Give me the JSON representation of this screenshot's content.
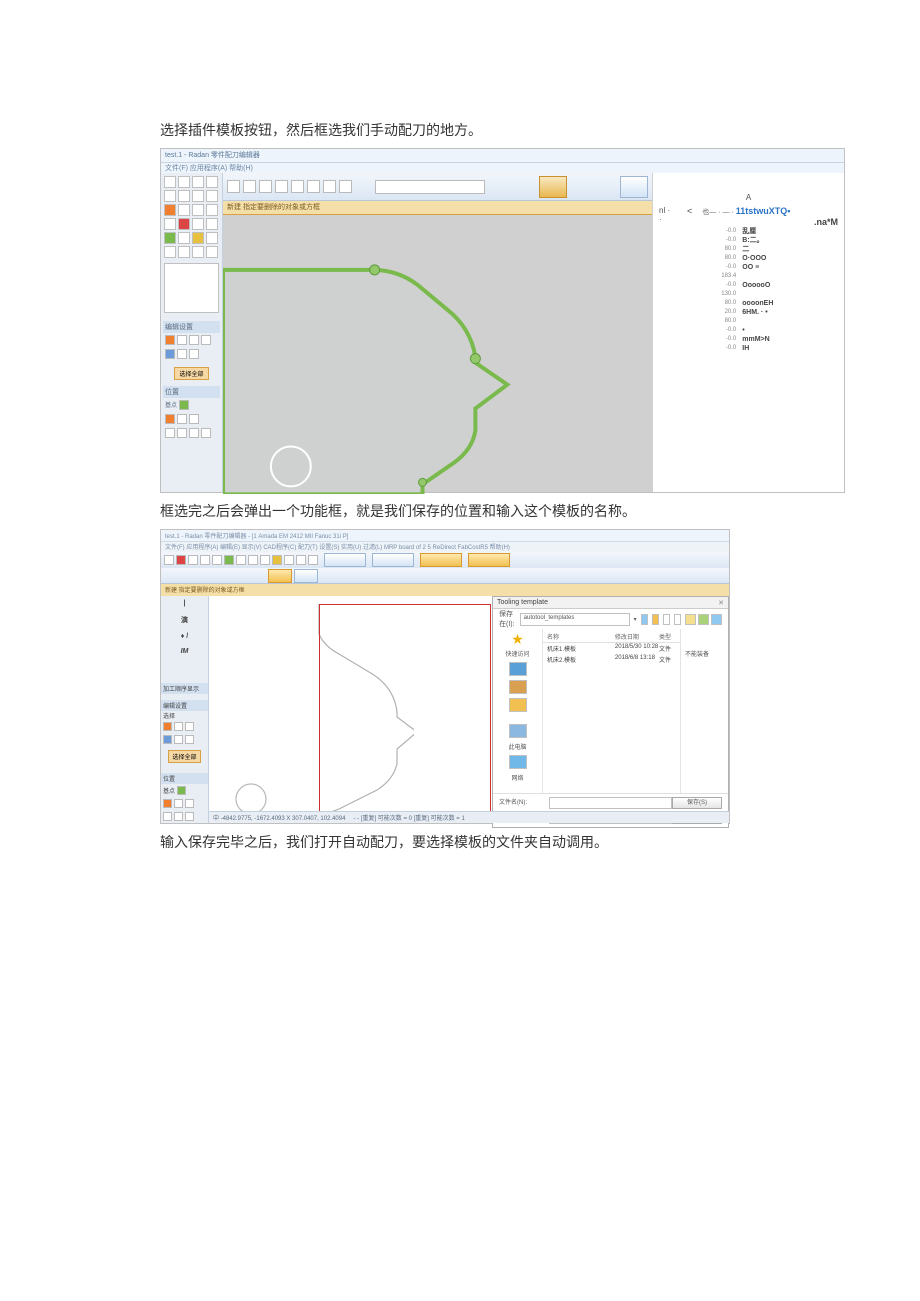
{
  "paragraphs": {
    "p1": "选择插件模板按钮，然后框选我们手动配刀的地方。",
    "p2": "框选完之后会弹出一个功能框，就是我们保存的位置和输入这个模板的名称。",
    "p3": "输入保存完毕之后，我们打开自动配刀，要选择模板的文件夹自动调用。"
  },
  "screenshot1": {
    "title": "test.1 - Radan 零件配刀编辑器",
    "menu": "文件(F)  应用程序(A)  帮助(H)",
    "subbar": "新建  指定要删除的对象或方框",
    "side": {
      "hdr1": "编辑设置",
      "btn_select_all": "选择全部",
      "hdr2": "位置",
      "lbl_origin": "基点"
    },
    "right_panel": {
      "caret": "A",
      "nl": "nl ·",
      "lt": "<",
      "mark": "也— · — ·",
      "blue": "11tstwuXTQ•",
      "bold_right": ".na*M",
      "rows": [
        {
          "l": "-0.0",
          "v": "乱厘"
        },
        {
          "l": "-0.0",
          "v": "B:二。"
        },
        {
          "l": "80.0",
          "v": "二"
        },
        {
          "l": "80.0",
          "v": "O·OOO"
        },
        {
          "l": "-0.0",
          "v": "OO ≡"
        },
        {
          "l": "183.4",
          "v": ""
        },
        {
          "l": "-0.0",
          "v": "OooooO"
        },
        {
          "l": "130.0",
          "v": ""
        },
        {
          "l": "80.0",
          "v": "oooonEH"
        },
        {
          "l": "20.0",
          "v": "6HM. · •"
        },
        {
          "l": "80.0",
          "v": ""
        },
        {
          "l": "-0.0",
          "v": "•"
        },
        {
          "l": "-0.0",
          "v": "mmM>N"
        },
        {
          "l": "-0.0",
          "v": "IH"
        }
      ]
    },
    "shape": {
      "fill": "#cfd0d0",
      "stroke": "#7aba4c",
      "stroke_width": 4,
      "marker_fill": "#93c96a",
      "marker_stroke": "#5f9a3b",
      "circle_stroke": "#ffffff",
      "circle_sw": 2
    }
  },
  "screenshot2": {
    "title": "test.1 - Radan 零件配刀编辑器 - [1 Amada EM 2412 MII Fanuc 31i P]",
    "menu": "文件(F)  应用程序(A)  编辑(E)  显示(V)  CAD程序(C)  配刀(T)  设置(S)  实用(U)  过滤(L)  MRP board of 2 5   ReDirect   FabCostR5   帮助(H)",
    "subbar": "新建  指定要删除的对象或方框",
    "left": {
      "sym1": "演",
      "sym2": "♦ /",
      "sym3": "IM",
      "hdr_proc": "加工顺序显示",
      "hdr_edit": "编辑设置",
      "lbl_sel": "选择",
      "btn_select_all": "选择全部",
      "hdr_pos": "位置",
      "lbl_origin": "基点"
    },
    "dialog": {
      "title": "Tooling template",
      "save_in_lbl": "保存在(I):",
      "folder": "autotool_templates",
      "quick_access": "快速访问",
      "this_pc": "此电脑",
      "network": "网络",
      "headers": {
        "name": "名称",
        "date": "修改日期",
        "type": "类型"
      },
      "rows": [
        {
          "name": "机床1.模板",
          "date": "2018/5/30 10:28",
          "type": "文件"
        },
        {
          "name": "机床2.模板",
          "date": "2018/6/8 13:18",
          "type": "文件"
        }
      ],
      "right_col": "不能装备",
      "filename_lbl": "文件名(N):",
      "filetype_lbl": "保存类型(T):",
      "filetype_val": "Radtds (*.xml)",
      "btn_save": "保存(S)",
      "btn_cancel": "取消"
    },
    "outline": {
      "stroke": "#b0b0b0",
      "circle_stroke": "#b8b8b8"
    },
    "status": {
      "coords": "中 -4842.9775, -1672.4093  X  307.0407,  102.4094",
      "mid": "- - [重复] 可能次数 = 0  [重复] 可能次数 = 1"
    },
    "arrow_color": "#d63a2a"
  }
}
